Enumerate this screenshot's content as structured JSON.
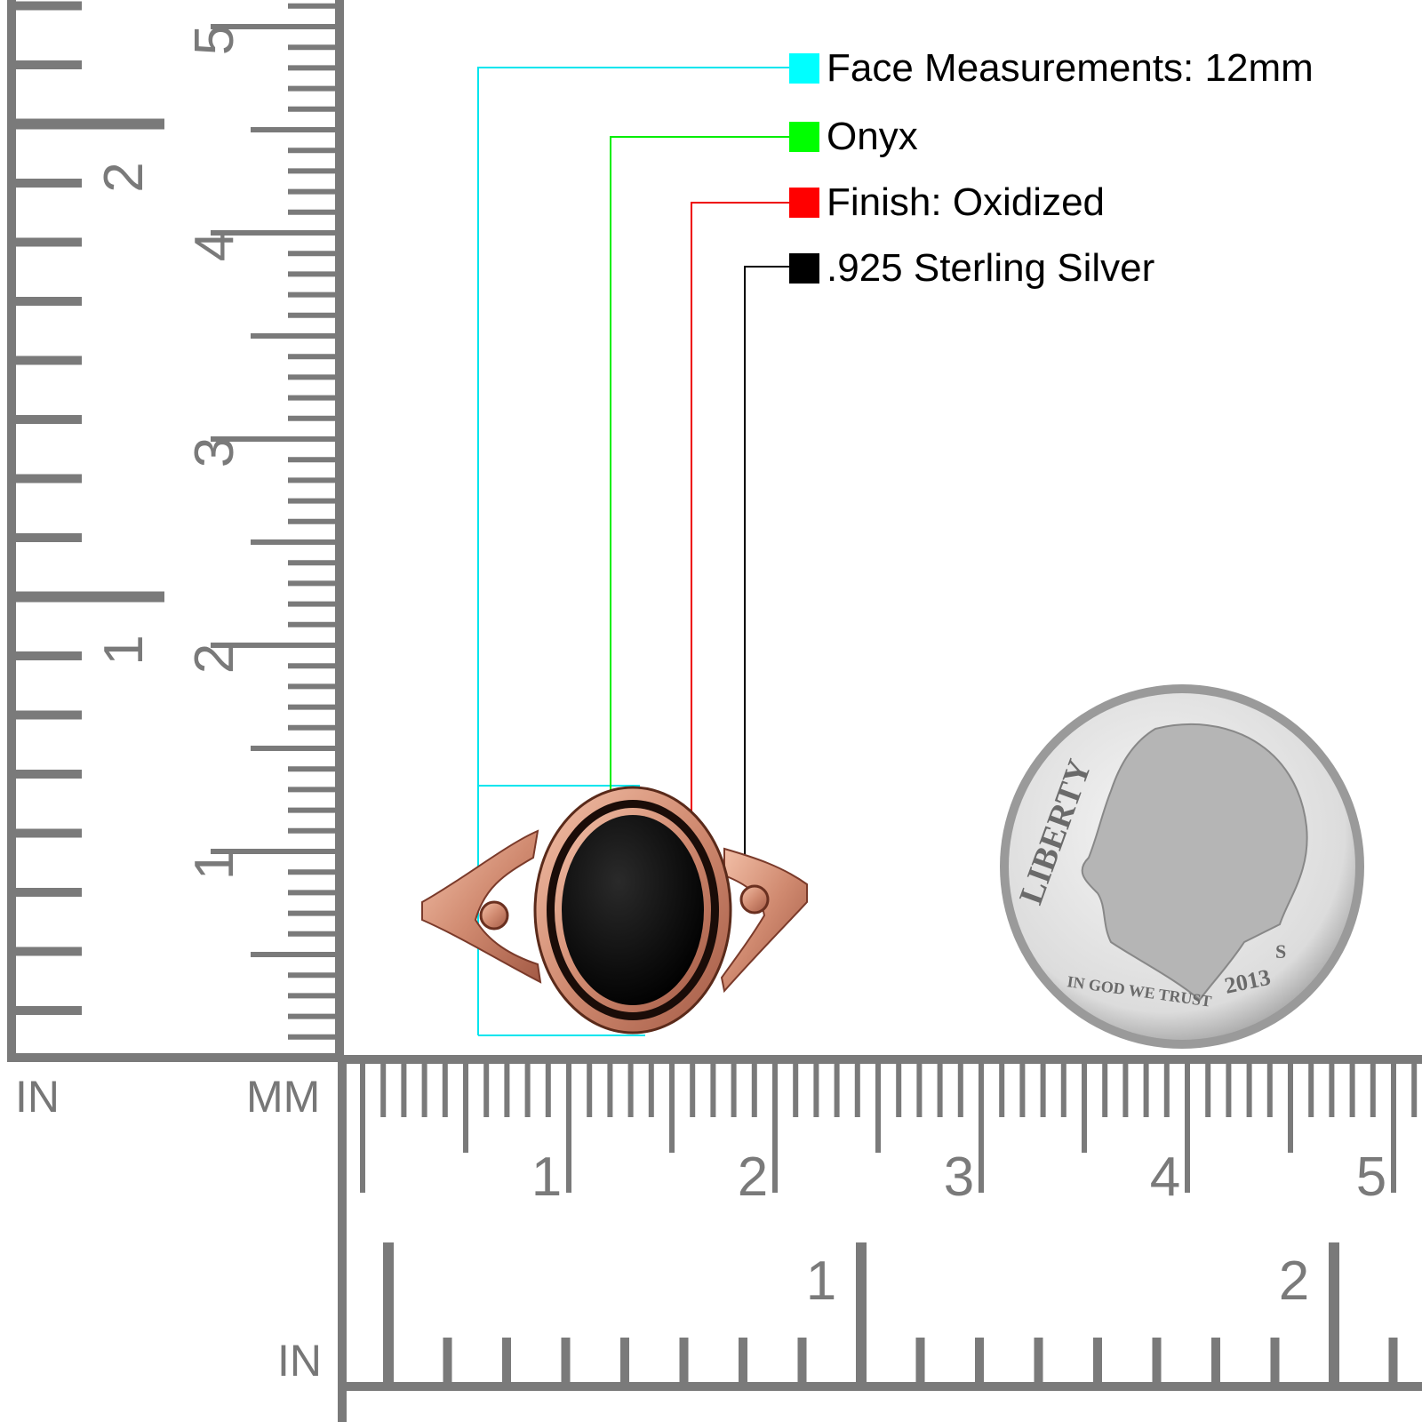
{
  "legend": [
    {
      "label": "Face Measurements: 12mm",
      "color": "#00ffff"
    },
    {
      "label": "Onyx",
      "color": "#00ff00"
    },
    {
      "label": "Finish: Oxidized",
      "color": "#ff0000"
    },
    {
      "label": ".925 Sterling Silver",
      "color": "#000000"
    }
  ],
  "rulers": {
    "left": {
      "unit_in": "IN",
      "unit_mm": "MM",
      "cm_labels": [
        "1",
        "2",
        "3",
        "4",
        "5"
      ],
      "in_labels": [
        "1",
        "2"
      ]
    },
    "bottom": {
      "unit_in": "IN",
      "cm_labels": [
        "1",
        "2",
        "3",
        "4",
        "5"
      ],
      "in_labels": [
        "1",
        "2"
      ]
    },
    "color": "#7a7a7a"
  },
  "ring": {
    "stone": "onyx",
    "metal_color": "#d9907a",
    "stone_color": "#050505"
  },
  "coin": {
    "inscription_top": "LIBERTY",
    "motto": "IN GOD WE TRUST",
    "year": "2013",
    "mint_mark": "S"
  }
}
